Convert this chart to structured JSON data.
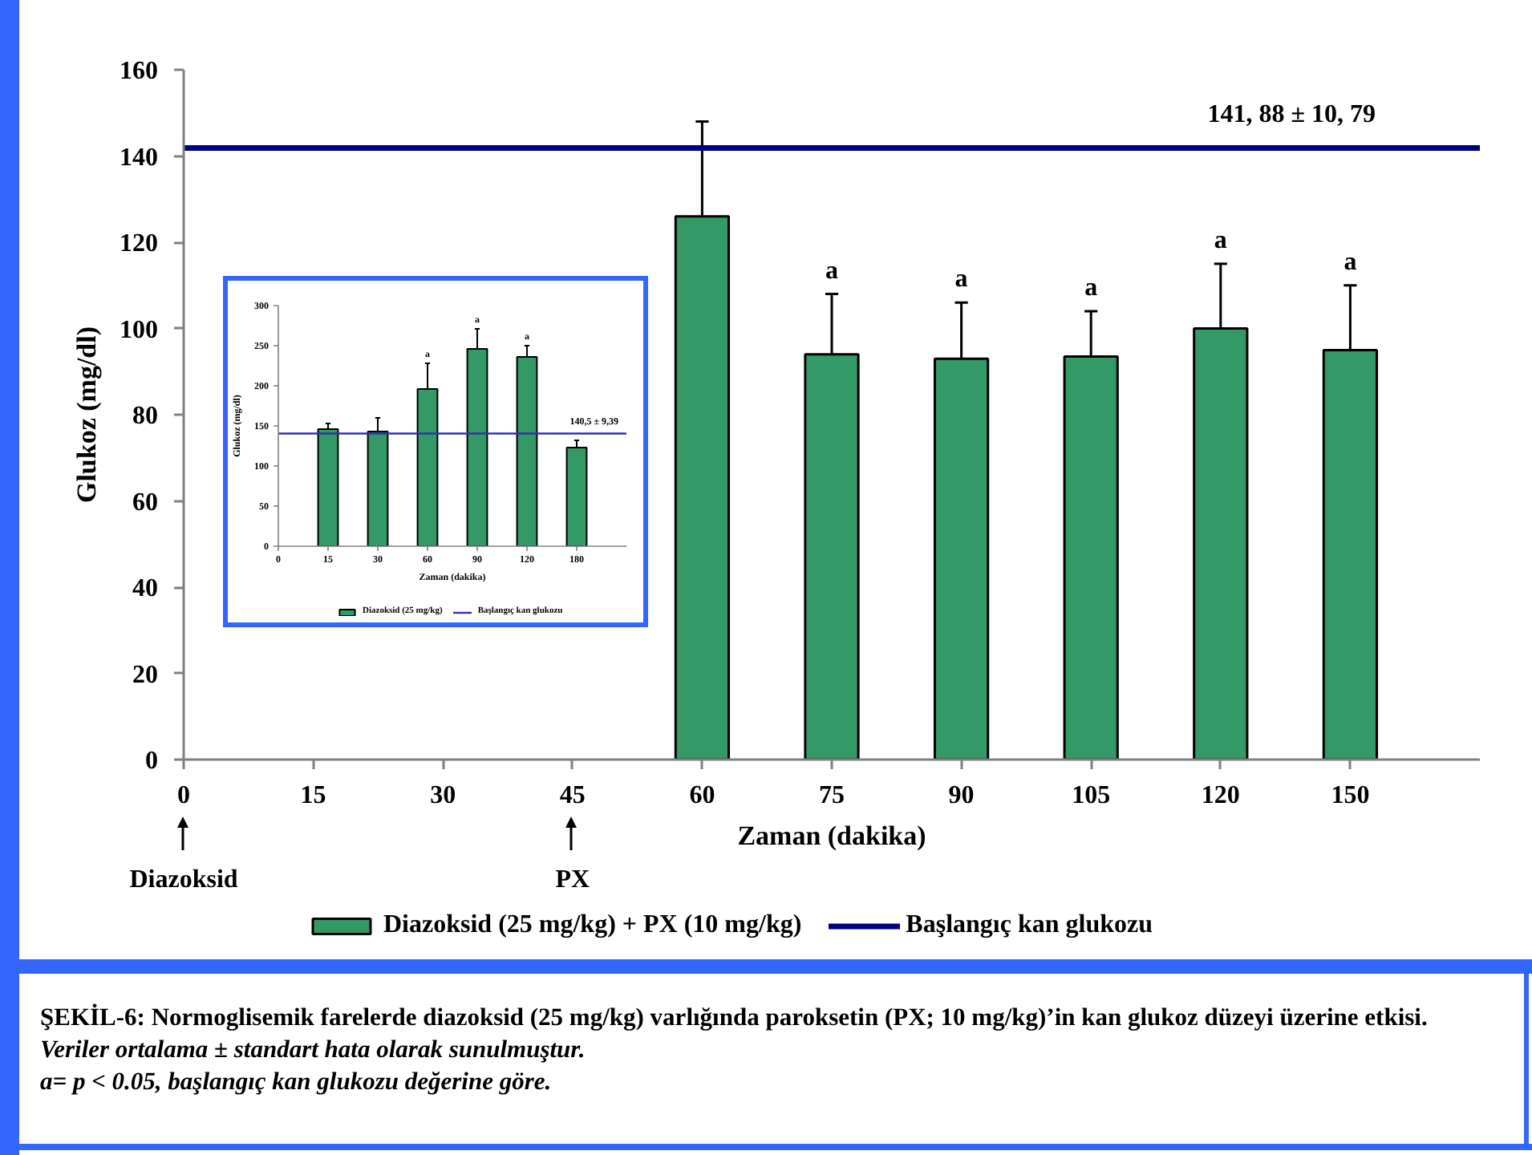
{
  "chart_data": [
    {
      "type": "bar",
      "categories": [
        "0",
        "15",
        "30",
        "45",
        "60",
        "75",
        "90",
        "105",
        "120",
        "150"
      ],
      "series": [
        {
          "name": "Diazoksid (25 mg/kg) + PX (10 mg/kg)",
          "color": "#339966",
          "values": [
            null,
            null,
            null,
            null,
            126,
            94,
            93,
            93.5,
            100,
            95
          ],
          "errors": [
            null,
            null,
            null,
            null,
            [
              126,
              148
            ],
            [
              94,
              108
            ],
            [
              93,
              106
            ],
            [
              93.5,
              104
            ],
            [
              100,
              115
            ],
            [
              95,
              110
            ]
          ]
        }
      ],
      "xlabel": "Zaman (dakika)",
      "ylabel": "Glukoz (mg/dl)",
      "ylim": [
        0,
        160
      ],
      "yticks": [
        0,
        20,
        40,
        60,
        80,
        100,
        120,
        140,
        160
      ],
      "ref_lines": [
        {
          "axis": "y",
          "value": 141.88,
          "label": "Başlangıç kan glukozu",
          "color": "#000080"
        }
      ],
      "annotations": [
        {
          "text": "141, 88 ± 10, 79",
          "y": 141.88
        },
        {
          "text": "a",
          "x": "75",
          "y": 108
        },
        {
          "text": "a",
          "x": "90",
          "y": 106
        },
        {
          "text": "a",
          "x": "105",
          "y": 104
        },
        {
          "text": "a",
          "x": "120",
          "y": 115
        },
        {
          "text": "a",
          "x": "150",
          "y": 110
        },
        "Diazoksid",
        "PX",
        "ŞEKİL-6: Normoglisemik farelerde diazoksid (25 mg/kg) varlığında paroksetin (PX; 10 mg/kg)’in kan glukoz düzeyi üzerine etkisi.",
        "Veriler ortalama ± standart hata olarak sunulmuştur.",
        "a= p < 0.05, başlangıç kan glukozu değerine göre."
      ],
      "legend": "bottom"
    },
    {
      "type": "bar",
      "categories": [
        "0",
        "15",
        "30",
        "60",
        "90",
        "120",
        "180"
      ],
      "series": [
        {
          "name": "Diazoksid (25 mg/kg)",
          "color": "#339966",
          "values": [
            null,
            146,
            143,
            196,
            246,
            236,
            123
          ],
          "errors": [
            null,
            [
              146,
              153
            ],
            [
              143,
              160
            ],
            [
              196,
              228
            ],
            [
              246,
              271
            ],
            [
              236,
              250
            ],
            [
              123,
              132
            ]
          ]
        }
      ],
      "xlabel": "Zaman (dakika)",
      "ylabel": "Glukoz (mg/dl)",
      "ylim": [
        0,
        300
      ],
      "yticks": [
        0,
        50,
        100,
        150,
        200,
        250,
        300
      ],
      "ref_lines": [
        {
          "axis": "y",
          "value": 140.5,
          "label": "Başlangıç kan glukozu",
          "color": "#3333aa"
        }
      ],
      "annotations": [
        {
          "text": "140,5 ± 9,39",
          "y": 140.5
        },
        {
          "text": "a",
          "x": "60",
          "y": 228
        },
        {
          "text": "a",
          "x": "90",
          "y": 271
        },
        {
          "text": "a",
          "x": "120",
          "y": 250
        }
      ],
      "legend": "bottom"
    }
  ]
}
